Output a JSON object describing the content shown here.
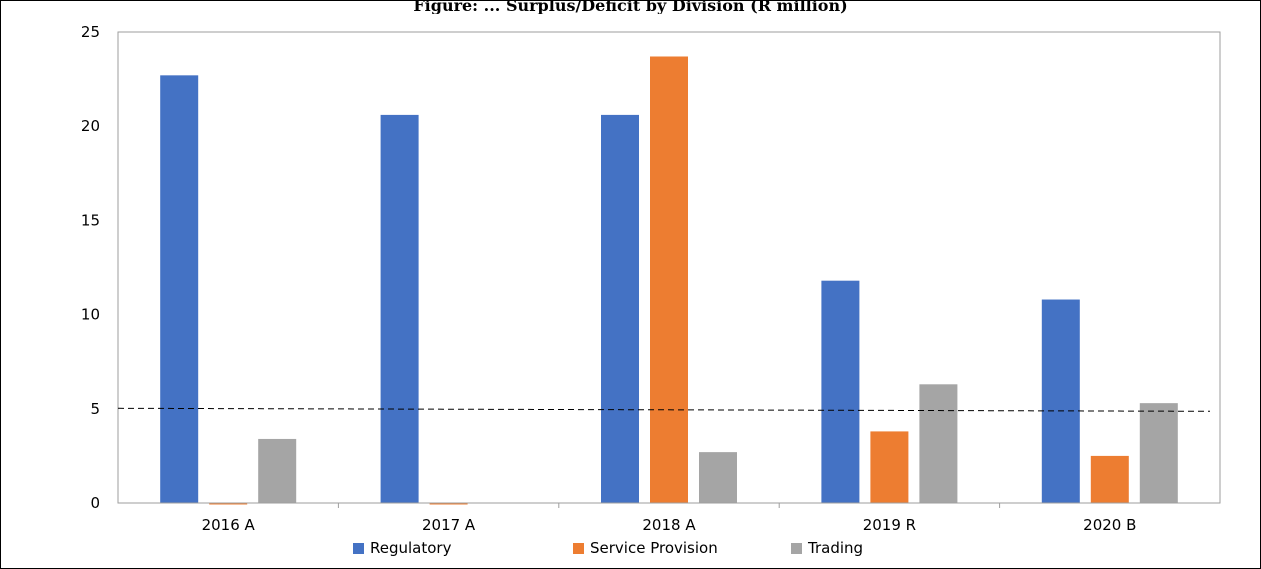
{
  "page": {
    "title": "Figure: ... Surplus/Deficit by Division (R million)"
  },
  "chart_data": {
    "type": "bar",
    "categories": [
      "2016 A",
      "2017 A",
      "2018 A",
      "2019 R",
      "2020 B"
    ],
    "series": [
      {
        "name": "Regulatory",
        "color": "#4472C4",
        "values": [
          22.7,
          20.6,
          20.6,
          11.8,
          10.8
        ]
      },
      {
        "name": "Service Provision",
        "color": "#ED7D31",
        "values": [
          -0.05,
          -0.05,
          23.7,
          3.8,
          2.5
        ]
      },
      {
        "name": "Trading",
        "color": "#A5A5A5",
        "values": [
          3.4,
          0,
          2.7,
          6.3,
          5.3
        ]
      }
    ],
    "ylim": [
      0,
      25
    ],
    "yticks": [
      0,
      5,
      10,
      15,
      20,
      25
    ],
    "reference_line": {
      "value": 5,
      "style": "dashed",
      "color": "#000000"
    },
    "grid": false,
    "legend": "bottom",
    "title": "",
    "xlabel": "",
    "ylabel": ""
  }
}
